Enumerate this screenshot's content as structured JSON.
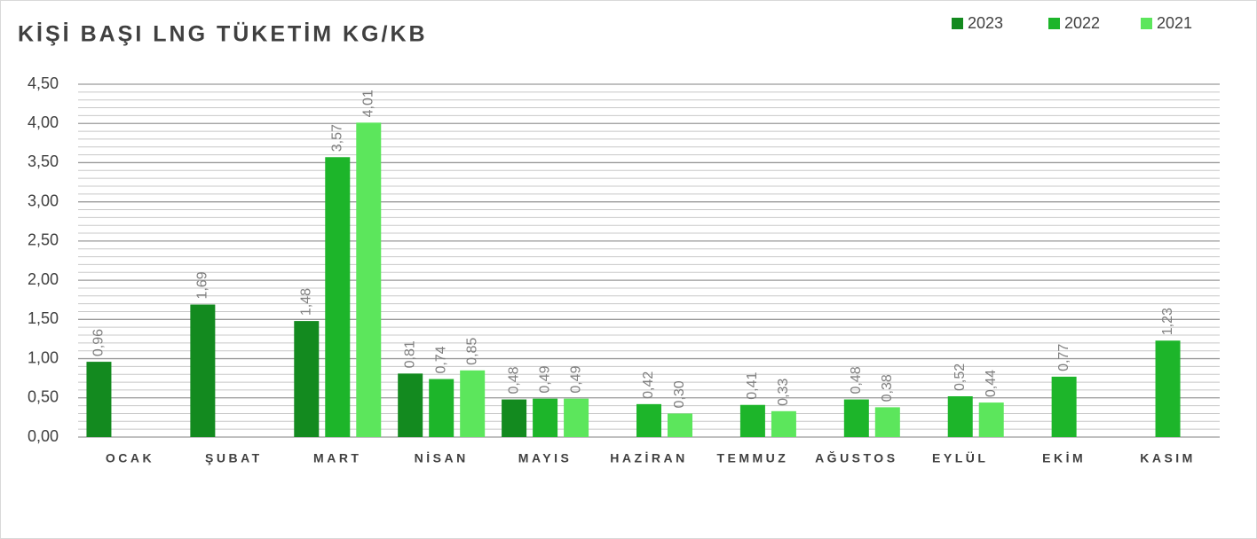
{
  "chart_data": {
    "type": "bar",
    "title": "KİŞİ BAŞI LNG TÜKETİM KG/KB",
    "categories": [
      "OCAK",
      "ŞUBAT",
      "MART",
      "NİSAN",
      "MAYIS",
      "HAZİRAN",
      "TEMMUZ",
      "AĞUSTOS",
      "EYLÜL",
      "EKİM",
      "KASIM"
    ],
    "series": [
      {
        "name": "2023",
        "color": "#138a1f",
        "values": [
          0.96,
          1.69,
          1.48,
          0.81,
          0.48,
          null,
          null,
          null,
          null,
          null,
          null
        ],
        "value_labels": [
          "0,96",
          "1,69",
          "1,48",
          "0,81",
          "0,48",
          null,
          null,
          null,
          null,
          null,
          null
        ]
      },
      {
        "name": "2022",
        "color": "#1db52a",
        "values": [
          null,
          null,
          3.57,
          0.74,
          0.49,
          0.42,
          0.41,
          0.48,
          0.52,
          0.77,
          1.23
        ],
        "value_labels": [
          null,
          null,
          "3,57",
          "0,74",
          "0,49",
          "0,42",
          "0,41",
          "0,48",
          "0,52",
          "0,77",
          "1,23"
        ]
      },
      {
        "name": "2021",
        "color": "#5ce65c",
        "values": [
          null,
          null,
          4.01,
          0.85,
          0.49,
          0.3,
          0.33,
          0.38,
          0.44,
          null,
          null
        ],
        "value_labels": [
          null,
          null,
          "4,01",
          "0,85",
          "0,49",
          "0,30",
          "0,33",
          "0,38",
          "0,44",
          null,
          null
        ]
      }
    ],
    "ylim": [
      0,
      4.5
    ],
    "yticks": [
      {
        "value": 0,
        "label": "0,00"
      },
      {
        "value": 0.5,
        "label": "0,50"
      },
      {
        "value": 1,
        "label": "1,00"
      },
      {
        "value": 1.5,
        "label": "1,50"
      },
      {
        "value": 2,
        "label": "2,00"
      },
      {
        "value": 2.5,
        "label": "2,50"
      },
      {
        "value": 3,
        "label": "3,00"
      },
      {
        "value": 3.5,
        "label": "3,50"
      },
      {
        "value": 4,
        "label": "4,00"
      },
      {
        "value": 4.5,
        "label": "4,50"
      }
    ],
    "grid": true,
    "legend": "top-right"
  }
}
